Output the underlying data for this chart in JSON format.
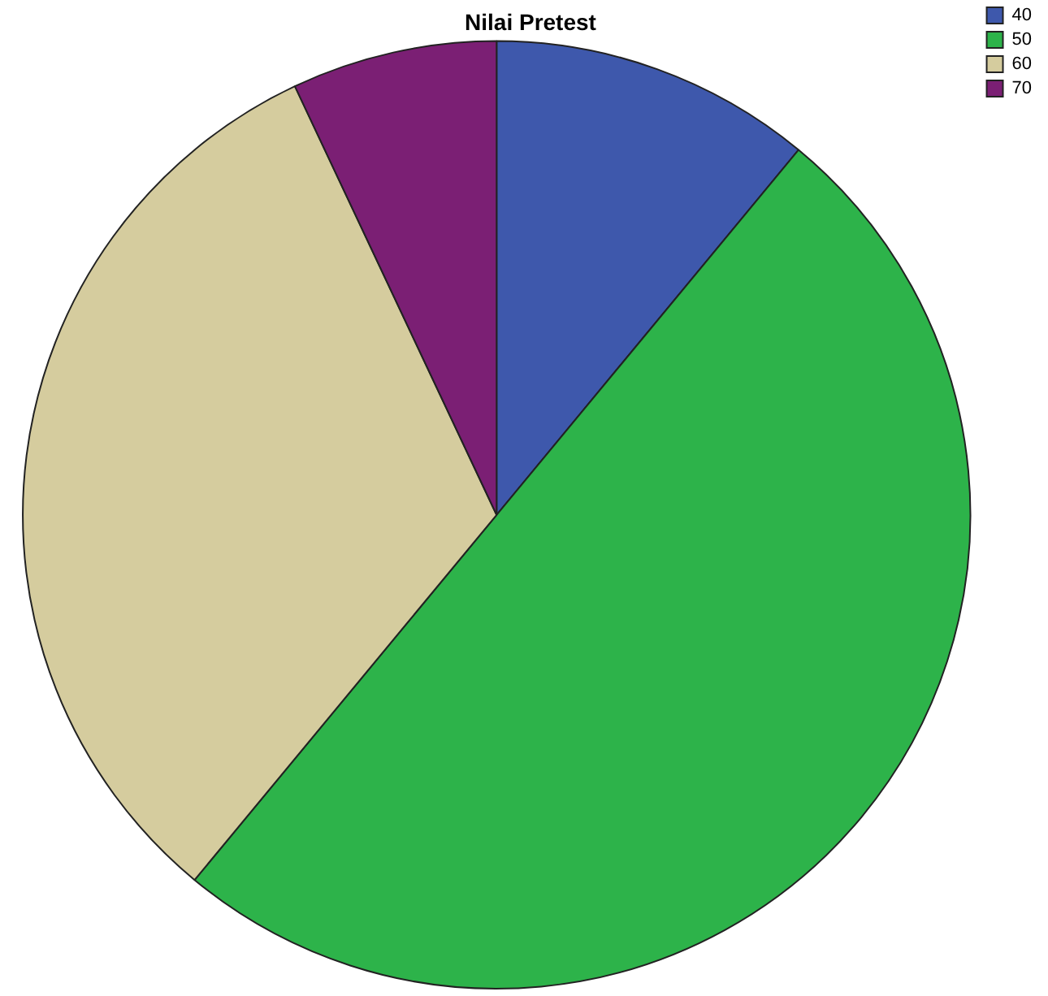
{
  "chart_data": {
    "type": "pie",
    "title": "Nilai Pretest",
    "categories": [
      "40",
      "50",
      "60",
      "70"
    ],
    "values": [
      11,
      50,
      32,
      7
    ],
    "colors": [
      "#3e58ac",
      "#2db34a",
      "#d5cc9e",
      "#7b1f74"
    ],
    "legend": "top right"
  }
}
